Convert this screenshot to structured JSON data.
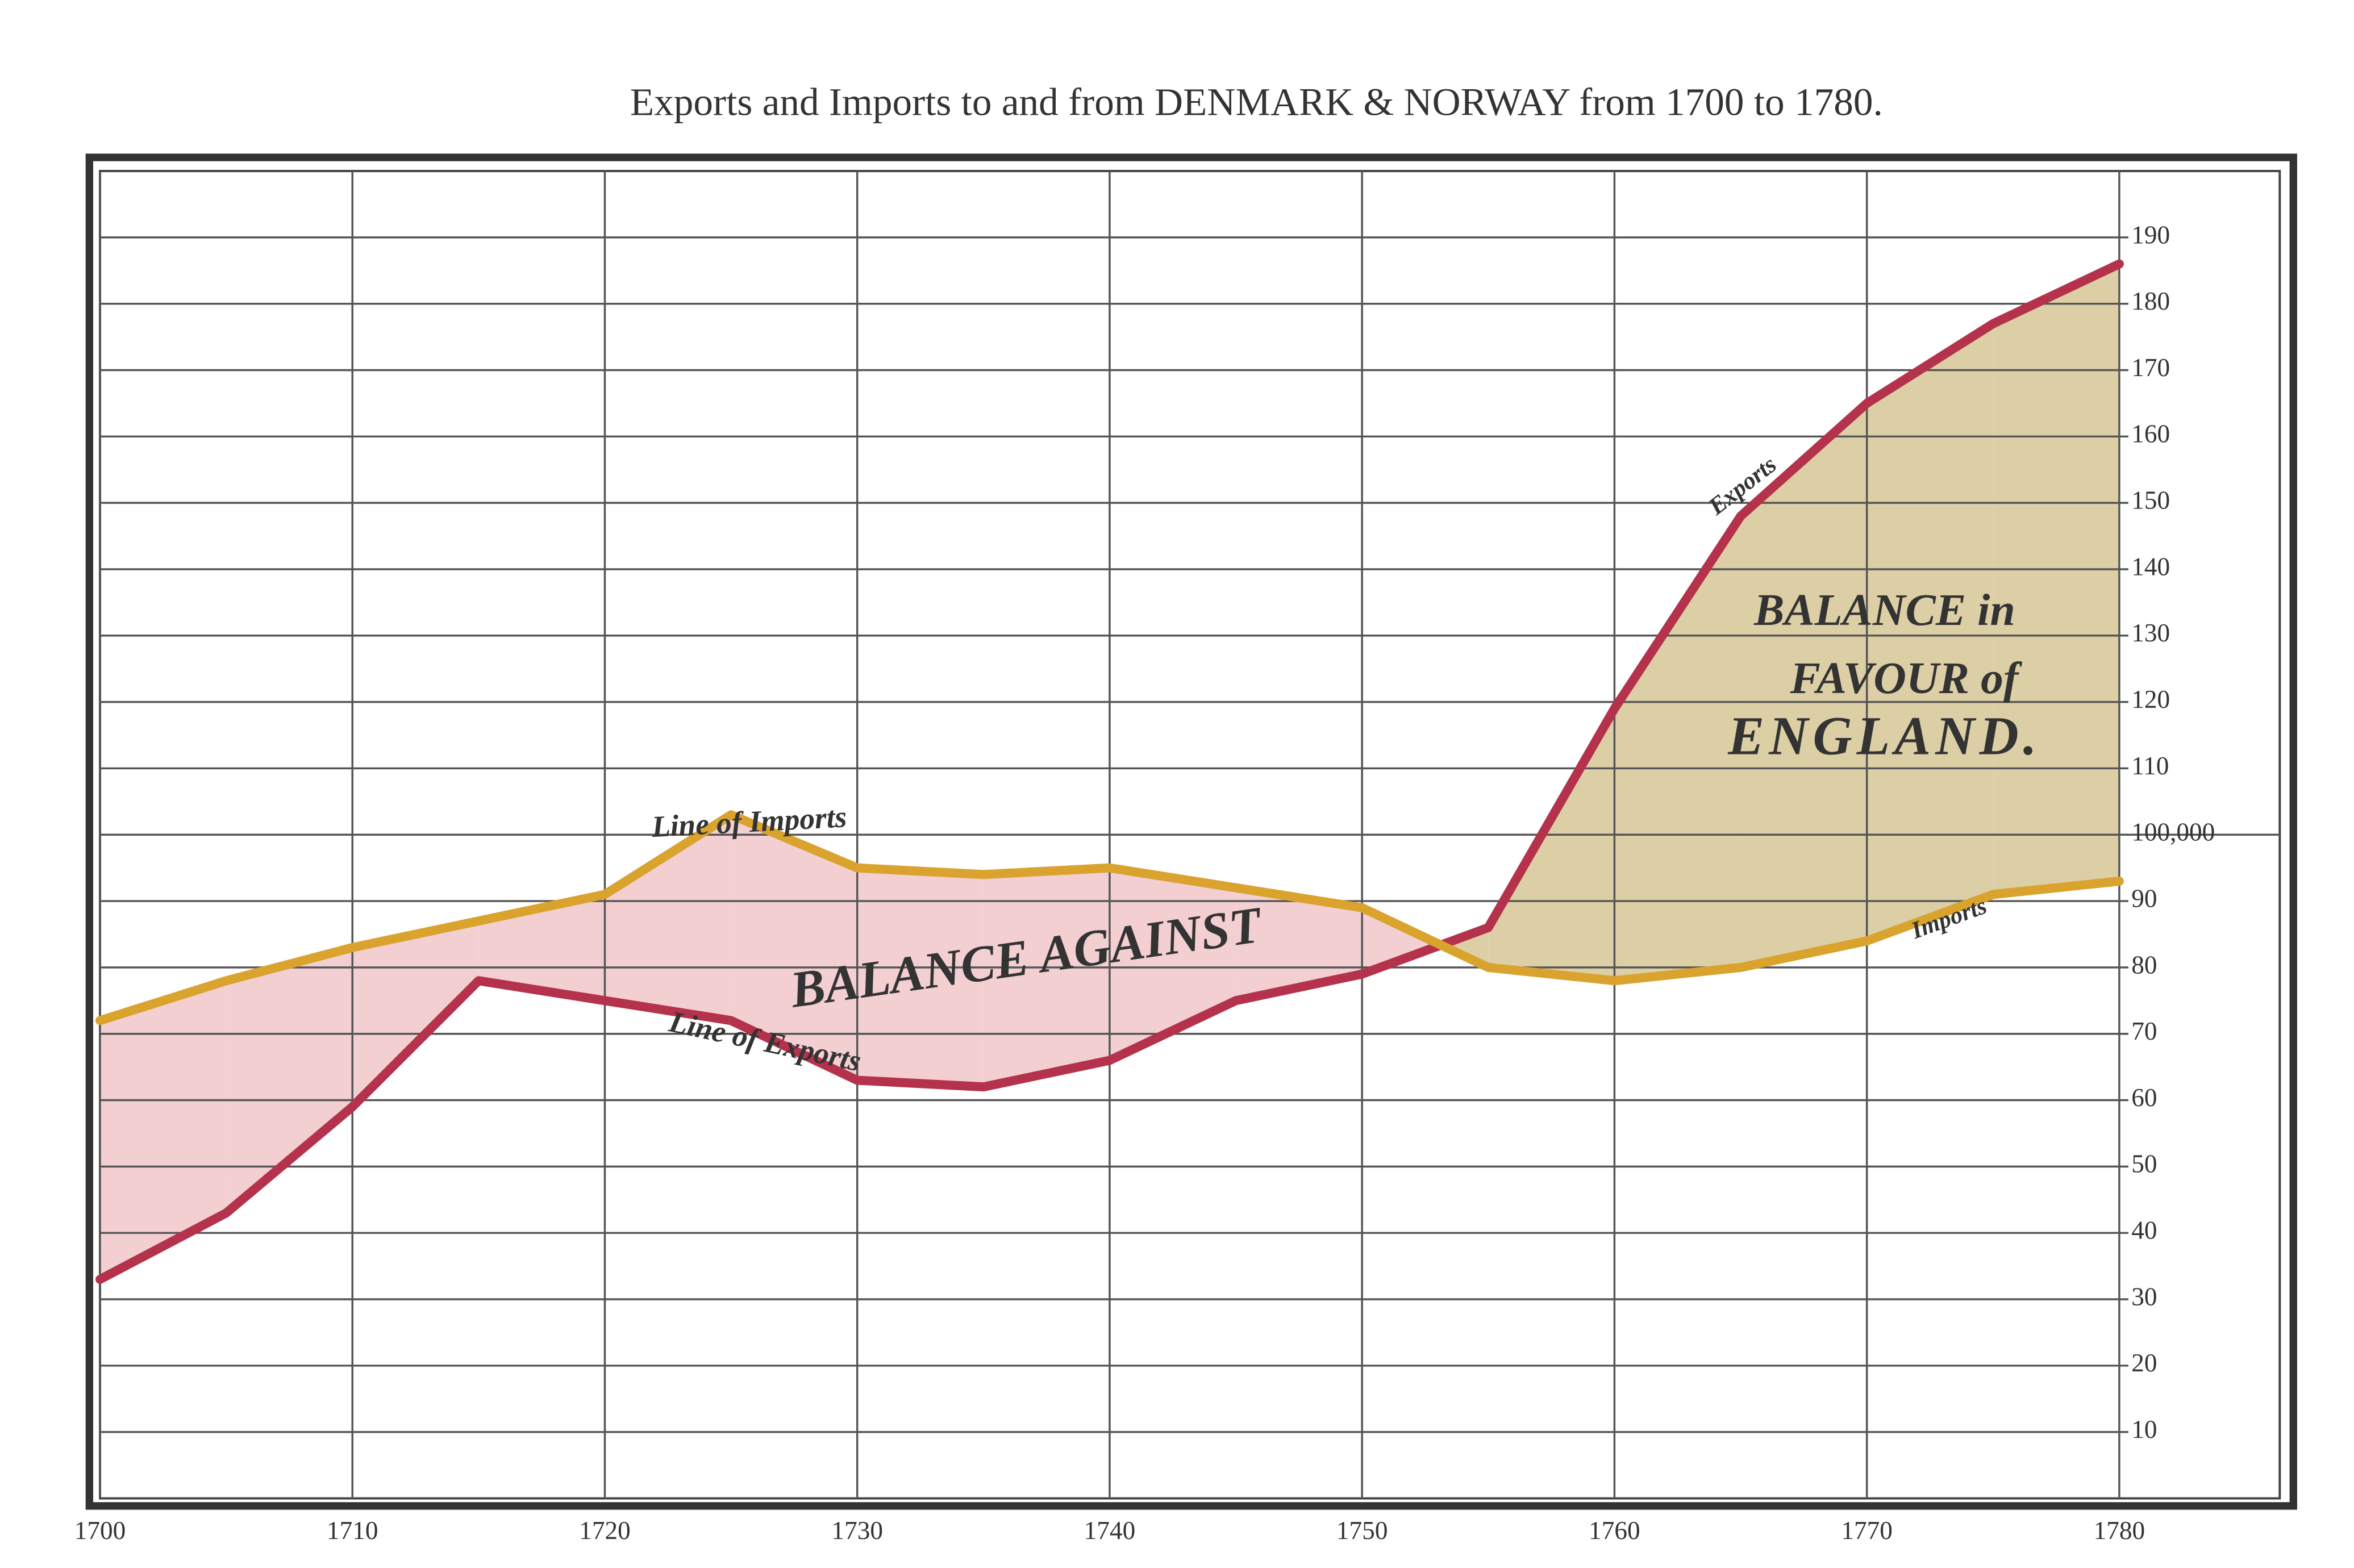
{
  "chart_data": {
    "type": "line",
    "title": "Exports and Imports to and from DENMARK & NORWAY from 1700 to 1780.",
    "x": [
      1700,
      1705,
      1710,
      1715,
      1720,
      1725,
      1730,
      1735,
      1740,
      1745,
      1750,
      1755,
      1760,
      1765,
      1770,
      1775,
      1780
    ],
    "series": [
      {
        "name": "Exports",
        "color": "#b5324d",
        "values": [
          33,
          43,
          59,
          78,
          75,
          72,
          63,
          62,
          66,
          75,
          79,
          86,
          119,
          148,
          165,
          177,
          186
        ]
      },
      {
        "name": "Imports",
        "color": "#d9a32e",
        "values": [
          72,
          78,
          83,
          87,
          91,
          103,
          95,
          94,
          95,
          92,
          89,
          80,
          78,
          80,
          84,
          91,
          93
        ]
      }
    ],
    "xlim": [
      1700,
      1780
    ],
    "xticks": [
      1700,
      1710,
      1720,
      1730,
      1740,
      1750,
      1760,
      1770,
      1780
    ],
    "ylim": [
      0,
      200
    ],
    "yticks": [
      10,
      20,
      30,
      40,
      50,
      60,
      70,
      80,
      90,
      {
        "value": 100,
        "label": "100,000"
      },
      110,
      120,
      130,
      140,
      150,
      160,
      170,
      180,
      190
    ],
    "grid": true,
    "area_colors": {
      "against": "#f3cfd2",
      "favour": "#dccfa5"
    },
    "annotations": [
      "Line of Imports",
      "Line of Exports",
      "BALANCE AGAINST",
      "Exports",
      "Imports",
      "BALANCE in",
      "FAVOUR of",
      "ENGLAND."
    ]
  }
}
